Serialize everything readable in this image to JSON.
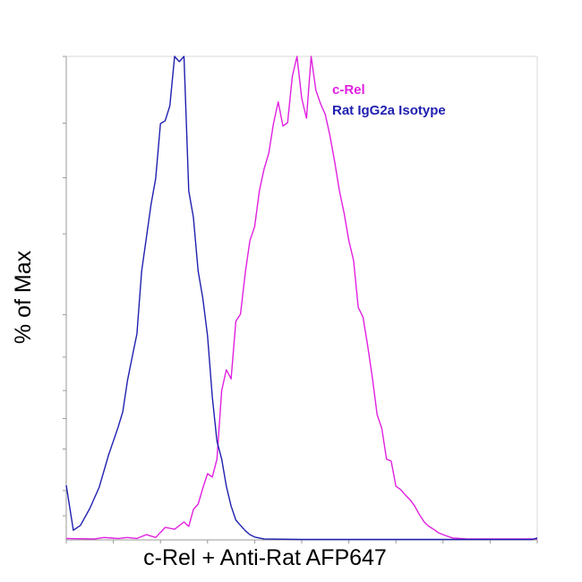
{
  "chart_data": {
    "type": "line",
    "title": "",
    "xlabel": "c-Rel + Anti-Rat AFP647",
    "ylabel": "% of Max",
    "xlim": [
      0,
      100
    ],
    "ylim": [
      0,
      100
    ],
    "grid": false,
    "x_tick_labels": false,
    "y_tick_labels": false,
    "legend_position": "top-right",
    "series": [
      {
        "name": "c-Rel",
        "color": "#e020e0",
        "points": [
          [
            0,
            0.3
          ],
          [
            6,
            0.2
          ],
          [
            8,
            0.5
          ],
          [
            11,
            0.3
          ],
          [
            13,
            0.5
          ],
          [
            15,
            0.3
          ],
          [
            17,
            1.1
          ],
          [
            19,
            0.5
          ],
          [
            21,
            2.6
          ],
          [
            23,
            2.2
          ],
          [
            25,
            3.7
          ],
          [
            26,
            2.8
          ],
          [
            27,
            6.3
          ],
          [
            28,
            7.4
          ],
          [
            29,
            10.7
          ],
          [
            30,
            13.7
          ],
          [
            31,
            13.0
          ],
          [
            32,
            16.7
          ],
          [
            33,
            30.9
          ],
          [
            34,
            35.2
          ],
          [
            35,
            33.3
          ],
          [
            36,
            45.2
          ],
          [
            37,
            46.7
          ],
          [
            38,
            55.2
          ],
          [
            39,
            61.9
          ],
          [
            40,
            64.8
          ],
          [
            41,
            72.2
          ],
          [
            42,
            76.7
          ],
          [
            43,
            80.0
          ],
          [
            44,
            86.1
          ],
          [
            45,
            90.6
          ],
          [
            46,
            85.6
          ],
          [
            47,
            86.3
          ],
          [
            48,
            95.9
          ],
          [
            49,
            100.0
          ],
          [
            50,
            91.3
          ],
          [
            51,
            87.2
          ],
          [
            52,
            100.0
          ],
          [
            53,
            93.0
          ],
          [
            54,
            90.2
          ],
          [
            55,
            88.0
          ],
          [
            56,
            83.5
          ],
          [
            57,
            78.2
          ],
          [
            58,
            72.2
          ],
          [
            59,
            67.6
          ],
          [
            60,
            61.9
          ],
          [
            61,
            57.8
          ],
          [
            62,
            48.1
          ],
          [
            63,
            46.1
          ],
          [
            64,
            40.2
          ],
          [
            65,
            33.5
          ],
          [
            66,
            25.9
          ],
          [
            67,
            23.1
          ],
          [
            68,
            16.7
          ],
          [
            69,
            16.3
          ],
          [
            70,
            11.1
          ],
          [
            71,
            10.4
          ],
          [
            72,
            9.3
          ],
          [
            73,
            8.3
          ],
          [
            74,
            7.0
          ],
          [
            75,
            5.2
          ],
          [
            76,
            3.7
          ],
          [
            77,
            2.8
          ],
          [
            78,
            2.2
          ],
          [
            79,
            1.5
          ],
          [
            80,
            1.1
          ],
          [
            82,
            0.4
          ],
          [
            85,
            0.2
          ],
          [
            100,
            0.2
          ]
        ]
      },
      {
        "name": "Rat IgG2a Isotype",
        "color": "#2020b0",
        "points": [
          [
            0,
            11.3
          ],
          [
            1.5,
            2.0
          ],
          [
            3,
            3.0
          ],
          [
            5,
            6.5
          ],
          [
            7,
            10.9
          ],
          [
            9,
            17.6
          ],
          [
            11,
            23.3
          ],
          [
            12,
            26.5
          ],
          [
            13,
            33.0
          ],
          [
            14,
            37.8
          ],
          [
            15,
            42.6
          ],
          [
            16,
            55.6
          ],
          [
            17,
            62.4
          ],
          [
            18,
            69.4
          ],
          [
            19,
            74.8
          ],
          [
            20,
            86.1
          ],
          [
            21,
            86.7
          ],
          [
            22,
            89.8
          ],
          [
            23,
            100.0
          ],
          [
            24,
            98.9
          ],
          [
            25,
            100.0
          ],
          [
            26,
            72.2
          ],
          [
            27,
            66.7
          ],
          [
            28,
            55.6
          ],
          [
            29,
            50.0
          ],
          [
            30,
            42.2
          ],
          [
            31,
            29.6
          ],
          [
            32,
            20.4
          ],
          [
            33,
            16.7
          ],
          [
            34,
            11.1
          ],
          [
            35,
            7.0
          ],
          [
            36,
            4.1
          ],
          [
            37,
            3.0
          ],
          [
            38,
            1.9
          ],
          [
            39,
            1.1
          ],
          [
            40,
            0.6
          ],
          [
            42,
            0.2
          ],
          [
            50,
            0.1
          ],
          [
            99,
            0.1
          ],
          [
            100,
            0.4
          ]
        ]
      }
    ]
  }
}
